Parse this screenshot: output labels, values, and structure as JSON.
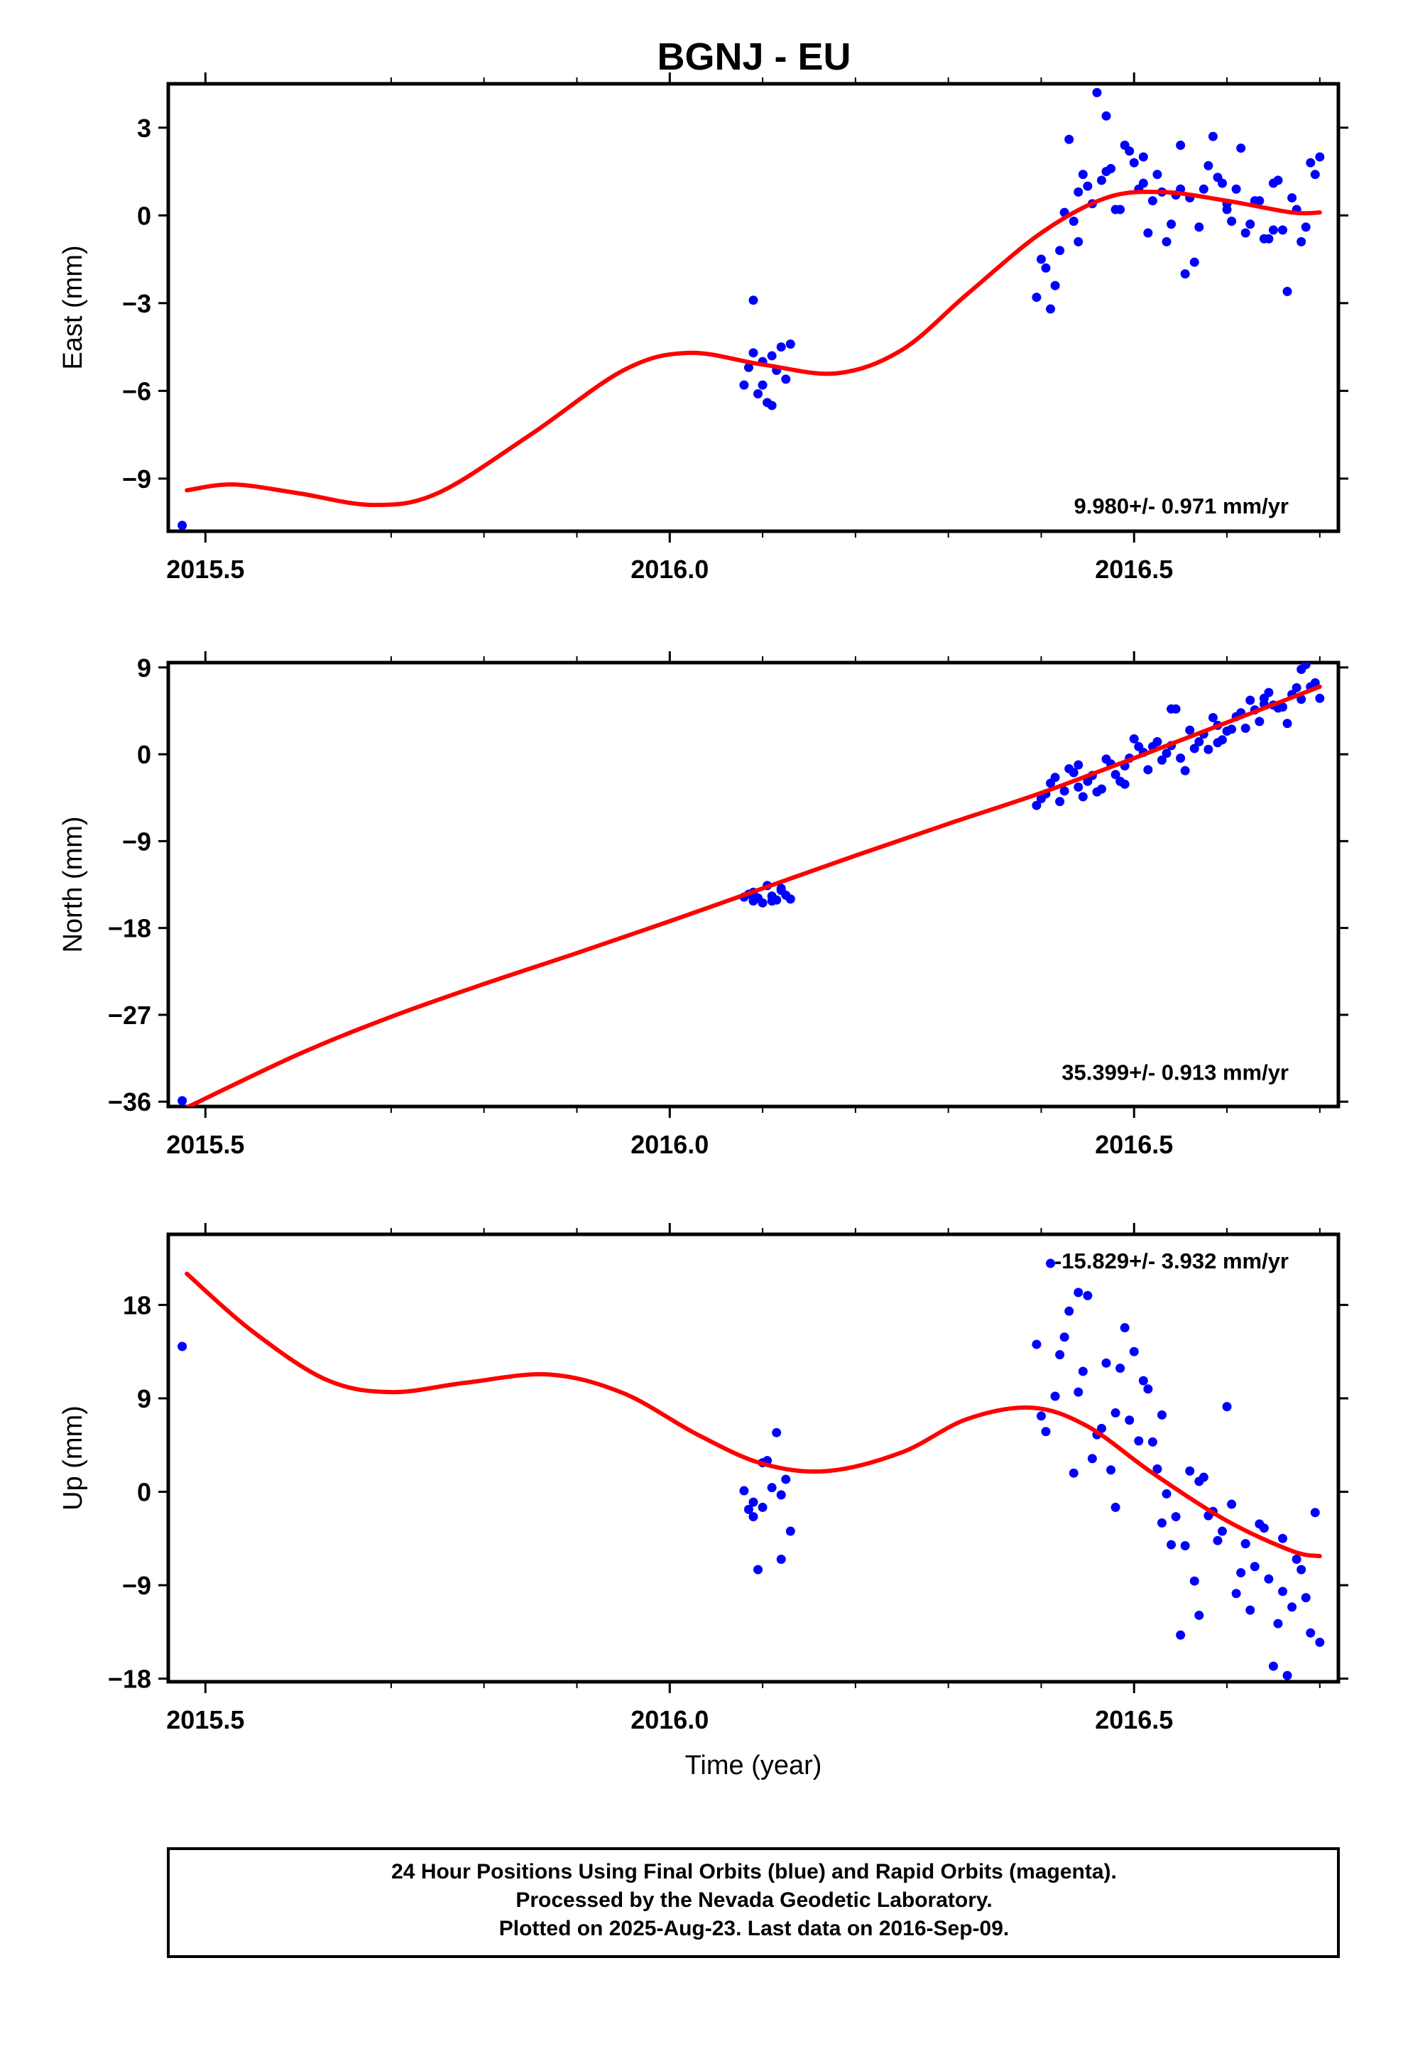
{
  "title": "BGNJ - EU",
  "colors": {
    "data_point": "#0000ff",
    "fit_line": "#ff0000",
    "frame": "#000000"
  },
  "chart_data": [
    {
      "type": "scatter",
      "ylabel": "East (mm)",
      "xlabel": "",
      "xlim": [
        2015.46,
        2016.72
      ],
      "ylim": [
        -10.8,
        4.5
      ],
      "yticks": [
        "3",
        "0",
        "-3",
        "-6",
        "-9"
      ],
      "xticks": [
        "2015.5",
        "2016.0",
        "2016.5"
      ],
      "rate_text": "9.980+/- 0.971 mm/yr",
      "series": [
        {
          "style": "points",
          "x": [
            2015.475,
            2016.08,
            2016.085,
            2016.09,
            2016.095,
            2016.1,
            2016.105,
            2016.11,
            2016.115,
            2016.12,
            2016.125,
            2016.13,
            2016.09,
            2016.1,
            2016.11,
            2016.395,
            2016.4,
            2016.41,
            2016.42,
            2016.43,
            2016.44,
            2016.45,
            2016.46,
            2016.47,
            2016.48,
            2016.49,
            2016.5,
            2016.51,
            2016.52,
            2016.53,
            2016.54,
            2016.55,
            2016.56,
            2016.57,
            2016.58,
            2016.59,
            2016.6,
            2016.61,
            2016.62,
            2016.63,
            2016.64,
            2016.65,
            2016.66,
            2016.67,
            2016.68,
            2016.69,
            2016.7,
            2016.405,
            2016.415,
            2016.425,
            2016.435,
            2016.445,
            2016.455,
            2016.465,
            2016.475,
            2016.485,
            2016.495,
            2016.505,
            2016.515,
            2016.525,
            2016.535,
            2016.545,
            2016.555,
            2016.565,
            2016.575,
            2016.585,
            2016.595,
            2016.605,
            2016.615,
            2016.625,
            2016.635,
            2016.645,
            2016.655,
            2016.665,
            2016.675,
            2016.685,
            2016.695,
            2016.44,
            2016.47,
            2016.51,
            2016.55,
            2016.6,
            2016.65
          ],
          "y": [
            -10.6,
            -5.8,
            -5.2,
            -4.7,
            -6.1,
            -5.0,
            -6.4,
            -4.8,
            -5.3,
            -4.5,
            -5.6,
            -4.4,
            -2.9,
            -5.8,
            -6.5,
            -2.8,
            -1.5,
            -3.2,
            -1.2,
            2.6,
            0.8,
            1.0,
            4.2,
            1.5,
            0.2,
            2.4,
            1.8,
            1.1,
            0.5,
            0.8,
            -0.3,
            2.4,
            0.6,
            -0.4,
            1.7,
            1.3,
            0.2,
            0.9,
            -0.6,
            0.5,
            -0.8,
            1.1,
            -0.5,
            0.6,
            -0.9,
            1.8,
            2.0,
            -1.8,
            -2.4,
            0.1,
            -0.2,
            1.4,
            0.4,
            1.2,
            1.6,
            0.2,
            2.2,
            0.9,
            -0.6,
            1.4,
            -0.9,
            0.7,
            -2.0,
            -1.6,
            0.9,
            2.7,
            1.1,
            -0.2,
            2.3,
            -0.3,
            0.5,
            -0.8,
            1.2,
            -2.6,
            0.2,
            -0.4,
            1.4,
            -0.9,
            3.4,
            2.0,
            0.9,
            0.4,
            -0.5
          ]
        },
        {
          "style": "line",
          "x": [
            2015.48,
            2015.53,
            2015.6,
            2015.68,
            2015.75,
            2015.85,
            2015.95,
            2016.02,
            2016.1,
            2016.18,
            2016.25,
            2016.32,
            2016.4,
            2016.47,
            2016.53,
            2016.6,
            2016.67,
            2016.7
          ],
          "y": [
            -9.4,
            -9.2,
            -9.5,
            -9.9,
            -9.5,
            -7.5,
            -5.3,
            -4.7,
            -5.1,
            -5.4,
            -4.6,
            -2.7,
            -0.6,
            0.6,
            0.8,
            0.5,
            0.1,
            0.1
          ]
        }
      ]
    },
    {
      "type": "scatter",
      "ylabel": "North (mm)",
      "xlabel": "",
      "xlim": [
        2015.46,
        2016.72
      ],
      "ylim": [
        -36.5,
        9.5
      ],
      "yticks": [
        "9",
        "0",
        "-9",
        "-18",
        "-27",
        "-36"
      ],
      "xticks": [
        "2015.5",
        "2016.0",
        "2016.5"
      ],
      "rate_text": "35.399+/- 0.913 mm/yr",
      "series": [
        {
          "style": "points",
          "x": [
            2015.475,
            2016.08,
            2016.085,
            2016.09,
            2016.095,
            2016.1,
            2016.105,
            2016.11,
            2016.115,
            2016.12,
            2016.125,
            2016.13,
            2016.09,
            2016.11,
            2016.12,
            2016.395,
            2016.4,
            2016.41,
            2016.42,
            2016.43,
            2016.44,
            2016.45,
            2016.46,
            2016.47,
            2016.48,
            2016.49,
            2016.5,
            2016.51,
            2016.52,
            2016.53,
            2016.54,
            2016.55,
            2016.56,
            2016.57,
            2016.58,
            2016.59,
            2016.6,
            2016.61,
            2016.62,
            2016.63,
            2016.64,
            2016.65,
            2016.66,
            2016.67,
            2016.68,
            2016.69,
            2016.7,
            2016.405,
            2016.415,
            2016.425,
            2016.435,
            2016.445,
            2016.455,
            2016.465,
            2016.475,
            2016.485,
            2016.495,
            2016.505,
            2016.515,
            2016.525,
            2016.535,
            2016.545,
            2016.555,
            2016.565,
            2016.575,
            2016.585,
            2016.595,
            2016.605,
            2016.615,
            2016.625,
            2016.635,
            2016.645,
            2016.655,
            2016.665,
            2016.675,
            2016.685,
            2016.695,
            2016.44,
            2016.49,
            2016.54,
            2016.59,
            2016.64,
            2016.68
          ],
          "y": [
            -35.9,
            -14.8,
            -14.5,
            -15.2,
            -14.9,
            -15.4,
            -13.6,
            -14.7,
            -15.1,
            -14.1,
            -14.6,
            -15.0,
            -14.3,
            -15.2,
            -13.9,
            -5.3,
            -4.6,
            -3.0,
            -4.9,
            -1.5,
            -3.4,
            -2.8,
            -3.9,
            -0.5,
            -2.1,
            -3.1,
            1.6,
            0.2,
            0.8,
            -0.6,
            0.9,
            -0.4,
            2.5,
            1.3,
            0.5,
            3.0,
            2.4,
            3.9,
            2.7,
            4.6,
            5.2,
            5.1,
            4.9,
            6.2,
            5.7,
            7.0,
            5.8,
            -4.1,
            -2.4,
            -3.8,
            -1.9,
            -4.4,
            -2.2,
            -3.6,
            -1.0,
            -2.8,
            -0.4,
            0.8,
            -1.6,
            1.3,
            0.1,
            4.7,
            -1.7,
            0.6,
            2.1,
            3.8,
            1.5,
            2.6,
            4.3,
            5.6,
            3.4,
            6.4,
            4.8,
            3.2,
            6.9,
            9.3,
            7.4,
            -1.1,
            -1.2,
            4.7,
            1.2,
            5.8,
            8.8
          ]
        },
        {
          "style": "line",
          "x": [
            2015.48,
            2015.6,
            2015.7,
            2015.8,
            2015.9,
            2016.0,
            2016.1,
            2016.2,
            2016.3,
            2016.4,
            2016.5,
            2016.6,
            2016.7
          ],
          "y": [
            -36.6,
            -31.1,
            -27.2,
            -23.8,
            -20.6,
            -17.3,
            -13.9,
            -10.5,
            -7.2,
            -4.0,
            -0.4,
            3.3,
            7.0
          ]
        }
      ]
    },
    {
      "type": "scatter",
      "ylabel": "Up (mm)",
      "xlabel": "Time (year)",
      "xlim": [
        2015.46,
        2016.72
      ],
      "ylim": [
        -18.3,
        24.8
      ],
      "yticks": [
        "18",
        "9",
        "0",
        "-9",
        "-18"
      ],
      "xticks": [
        "2015.5",
        "2016.0",
        "2016.5"
      ],
      "rate_text": "-15.829+/- 3.932 mm/yr",
      "series": [
        {
          "style": "points",
          "x": [
            2015.475,
            2016.08,
            2016.085,
            2016.09,
            2016.095,
            2016.1,
            2016.105,
            2016.11,
            2016.115,
            2016.12,
            2016.125,
            2016.13,
            2016.09,
            2016.1,
            2016.12,
            2016.395,
            2016.4,
            2016.41,
            2016.42,
            2016.43,
            2016.44,
            2016.45,
            2016.46,
            2016.47,
            2016.48,
            2016.49,
            2016.5,
            2016.51,
            2016.52,
            2016.53,
            2016.54,
            2016.55,
            2016.56,
            2016.57,
            2016.58,
            2016.59,
            2016.6,
            2016.61,
            2016.62,
            2016.63,
            2016.64,
            2016.65,
            2016.66,
            2016.67,
            2016.68,
            2016.69,
            2016.7,
            2016.405,
            2016.415,
            2016.425,
            2016.435,
            2016.445,
            2016.455,
            2016.465,
            2016.475,
            2016.485,
            2016.495,
            2016.505,
            2016.515,
            2016.525,
            2016.535,
            2016.545,
            2016.555,
            2016.565,
            2016.575,
            2016.585,
            2016.595,
            2016.605,
            2016.615,
            2016.625,
            2016.635,
            2016.645,
            2016.655,
            2016.665,
            2016.675,
            2016.685,
            2016.695,
            2016.44,
            2016.48,
            2016.53,
            2016.57,
            2016.62,
            2016.66
          ],
          "y": [
            14.0,
            0.1,
            -1.7,
            -2.4,
            -7.5,
            -1.5,
            3.0,
            0.4,
            5.7,
            -6.5,
            1.2,
            -3.8,
            -1.0,
            2.8,
            -0.3,
            14.2,
            7.3,
            22.0,
            13.2,
            17.4,
            9.6,
            18.9,
            5.5,
            12.4,
            7.6,
            15.8,
            13.5,
            10.7,
            4.8,
            7.4,
            -5.1,
            -13.8,
            2.0,
            1.0,
            -2.3,
            -4.7,
            8.2,
            -9.8,
            -5.0,
            -7.2,
            -3.5,
            -16.8,
            -9.6,
            -11.1,
            -7.5,
            -13.6,
            -14.5,
            5.8,
            9.2,
            14.9,
            1.8,
            11.6,
            3.2,
            6.1,
            2.1,
            11.9,
            6.9,
            4.9,
            9.9,
            2.2,
            -0.2,
            -2.4,
            -5.2,
            -8.6,
            1.4,
            -1.9,
            -3.8,
            -1.2,
            -7.8,
            -11.4,
            -3.1,
            -8.4,
            -12.7,
            -17.7,
            -6.5,
            -10.2,
            -2.0,
            19.2,
            -1.5,
            -3.0,
            -11.9,
            -5.0,
            -4.5
          ]
        },
        {
          "style": "line",
          "x": [
            2015.48,
            2015.55,
            2015.63,
            2015.7,
            2015.78,
            2015.87,
            2015.95,
            2016.03,
            2016.1,
            2016.17,
            2016.25,
            2016.32,
            2016.39,
            2016.45,
            2016.52,
            2016.6,
            2016.67,
            2016.7
          ],
          "y": [
            21.0,
            15.5,
            10.8,
            9.6,
            10.5,
            11.3,
            9.5,
            5.5,
            2.7,
            2.0,
            3.8,
            7.0,
            8.1,
            6.3,
            1.8,
            -2.8,
            -5.7,
            -6.2
          ]
        }
      ]
    }
  ],
  "footer": {
    "line1": "24 Hour Positions Using Final Orbits (blue) and Rapid Orbits (magenta).",
    "line2": "Processed by the Nevada Geodetic Laboratory.",
    "line3": "Plotted on 2025-Aug-23. Last data on 2016-Sep-09."
  }
}
